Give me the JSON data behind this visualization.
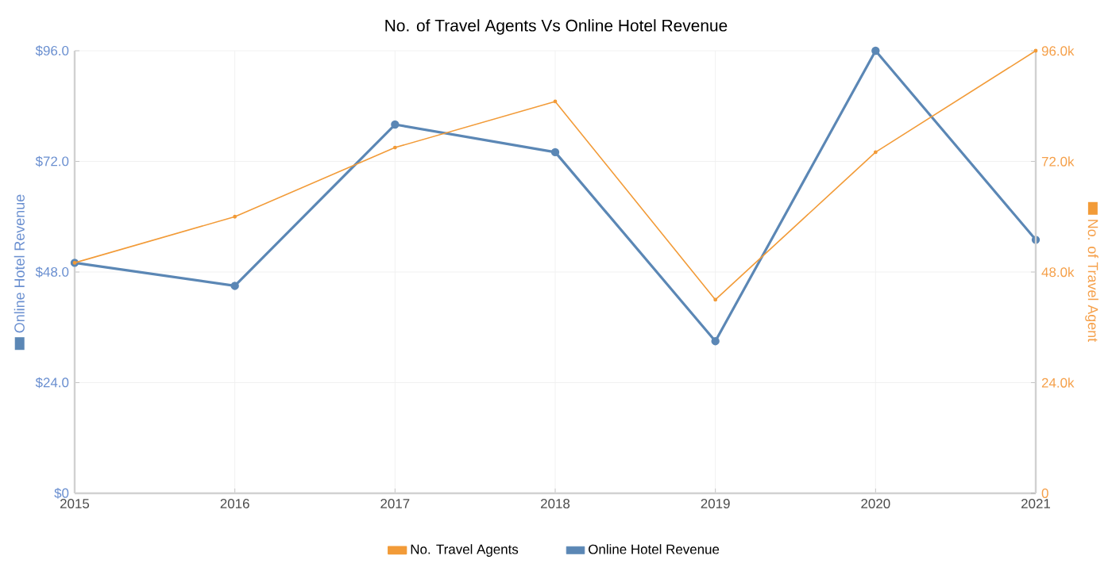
{
  "chart_data": {
    "type": "line",
    "title": "No. of Travel Agents Vs Online Hotel Revenue",
    "x": [
      2015,
      2016,
      2017,
      2018,
      2019,
      2020,
      2021
    ],
    "xlim": [
      2015,
      2021
    ],
    "xticks": [
      2015,
      2016,
      2017,
      2018,
      2019,
      2020,
      2021
    ],
    "ylabel": "Online Hotel Revenue",
    "y2label": "No. of Travel Agent",
    "ylim": [
      0,
      96
    ],
    "yticks": [
      {
        "value": 0,
        "label": "$0"
      },
      {
        "value": 24,
        "label": "$24.0"
      },
      {
        "value": 48,
        "label": "$48.0"
      },
      {
        "value": 72,
        "label": "$72.0"
      },
      {
        "value": 96,
        "label": "$96.0"
      }
    ],
    "y2lim": [
      0,
      96000
    ],
    "y2ticks": [
      {
        "value": 0,
        "label": "0"
      },
      {
        "value": 24000,
        "label": "24.0k"
      },
      {
        "value": 48000,
        "label": "48.0k"
      },
      {
        "value": 72000,
        "label": "72.0k"
      },
      {
        "value": 96000,
        "label": "96.0k"
      }
    ],
    "series": [
      {
        "name": "No. Travel Agents",
        "color": "#f29b38",
        "axis": "y2",
        "values": [
          50000,
          60000,
          75000,
          85000,
          42000,
          74000,
          96000
        ]
      },
      {
        "name": "Online Hotel Revenue",
        "color": "#5b87b5",
        "axis": "y",
        "values": [
          50,
          45,
          80,
          74,
          33,
          96,
          55
        ]
      }
    ],
    "grid": true,
    "legend": "bottom",
    "marker": "circle",
    "line_style": "solid"
  }
}
